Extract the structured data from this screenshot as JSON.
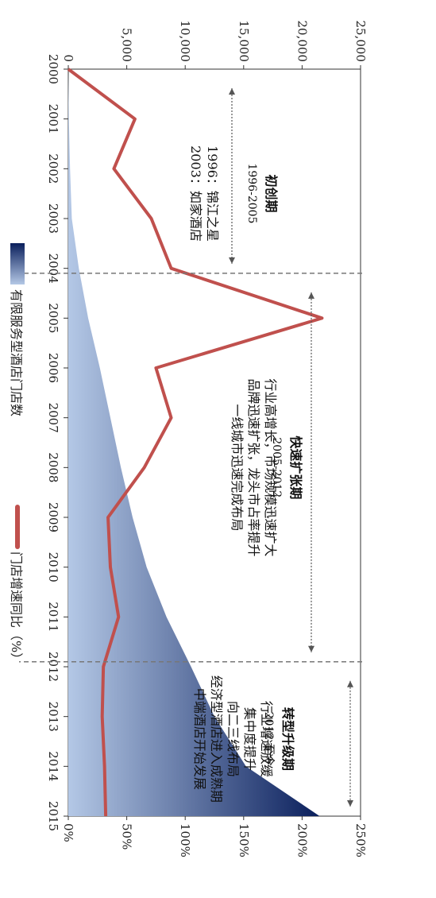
{
  "chart_data": {
    "type": "area",
    "categories": [
      "2000",
      "2001",
      "2002",
      "2003",
      "2004",
      "2005",
      "2006",
      "2007",
      "2008",
      "2009",
      "2010",
      "2011",
      "2012",
      "2013",
      "2014",
      "2015"
    ],
    "series": [
      {
        "name": "有限服务型酒店门店数",
        "kind": "area",
        "axis": "count",
        "color_start": "#0a1f5c",
        "color_end": "#b4c8e6",
        "values": [
          0,
          50,
          150,
          300,
          900,
          1700,
          2700,
          3600,
          4500,
          5500,
          6700,
          8400,
          10500,
          12500,
          15200,
          21500
        ]
      },
      {
        "name": "门店增速同比（%）",
        "kind": "line",
        "axis": "percent",
        "color": "#c0504d",
        "values": [
          0,
          57,
          39,
          71,
          88,
          217,
          75,
          88,
          65,
          34,
          36,
          43,
          30,
          29,
          31,
          32
        ]
      }
    ],
    "count_axis": {
      "min": 0,
      "max": 25000,
      "ticks": [
        "0",
        "5,000",
        "10,000",
        "15,000",
        "20,000",
        "25,000"
      ]
    },
    "percent_axis": {
      "min": 0,
      "max": 250,
      "ticks": [
        "0%",
        "50%",
        "100%",
        "150%",
        "200%",
        "250%"
      ]
    },
    "dividers": [
      2004.1,
      2011.9
    ],
    "annotations": [
      {
        "id": "phase1",
        "title": "初创期",
        "range": "1996-2005",
        "lines": [
          "1996：锦江之星",
          "2003：如家酒店"
        ],
        "span": [
          2000,
          2004.1
        ]
      },
      {
        "id": "phase2",
        "title": "快速扩张期",
        "range": "2005-2012",
        "lines": [
          "行业高增长，市场规模迅速扩大",
          "品牌迅速扩张，龙头市占率提升",
          "一线城市迅速完成布局"
        ],
        "span": [
          2004.1,
          2011.9
        ]
      },
      {
        "id": "phase3",
        "title": "转型升级期",
        "range": "2012-至今",
        "lines": [
          "行业增速放缓",
          "集中度提升",
          "向二三线布局",
          "经济型酒店进入成熟期",
          "中端酒店开始发展"
        ],
        "span": [
          2011.9,
          2015
        ]
      }
    ],
    "legend_position": "bottom-left"
  }
}
